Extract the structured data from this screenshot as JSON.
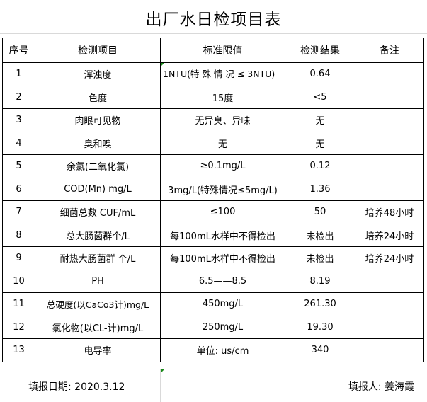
{
  "title": "出厂水日检项目表",
  "headers": [
    "序号",
    "检测项目",
    "标准限值",
    "检测结果",
    "备注"
  ],
  "rows": [
    {
      "no": "1",
      "item": "浑浊度",
      "standard": "1NTU(特 殊 情 况 ≤ 3NTU)",
      "result": "0.64",
      "note": ""
    },
    {
      "no": "2",
      "item": "色度",
      "standard": "15度",
      "result": "<5",
      "note": ""
    },
    {
      "no": "3",
      "item": "肉眼可见物",
      "standard": "无异臭、异味",
      "result": "无",
      "note": ""
    },
    {
      "no": "4",
      "item": "臭和嗅",
      "standard": "无",
      "result": "无",
      "note": ""
    },
    {
      "no": "5",
      "item": "余氯(二氧化氯)",
      "standard": "≥0.1mg/L",
      "result": "0.12",
      "note": ""
    },
    {
      "no": "6",
      "item": "COD(Mn)   mg/L",
      "standard": "3mg/L(特殊情况≤5mg/L)",
      "result": "1.36",
      "note": ""
    },
    {
      "no": "7",
      "item": "细菌总数 CUF/mL",
      "standard": "≤100",
      "result": "50",
      "note": "培养48小时"
    },
    {
      "no": "8",
      "item": "总大肠菌群个/L",
      "standard": "每100mL水样中不得检出",
      "result": "未检出",
      "note": "培养24小时"
    },
    {
      "no": "9",
      "item": "耐热大肠菌群 个/L",
      "standard": "每100mL水样中不得检出",
      "result": "未检出",
      "note": "培养24小时"
    },
    {
      "no": "10",
      "item": "PH",
      "standard": "6.5——8.5",
      "result": "8.19",
      "note": ""
    },
    {
      "no": "11",
      "item": "总硬度(以CaCo3计)mg/L",
      "standard": "450mg/L",
      "result": "261.30",
      "note": ""
    },
    {
      "no": "12",
      "item": "氯化物(以CL-计)mg/L",
      "standard": "250mg/L",
      "result": "19.30",
      "note": ""
    },
    {
      "no": "13",
      "item": "电导率",
      "standard": "单位: us/cm",
      "result": "340",
      "note": ""
    }
  ],
  "footer": {
    "date": "填报日期: 2020.3.12",
    "reporter": "填报人: 姜海霞"
  }
}
